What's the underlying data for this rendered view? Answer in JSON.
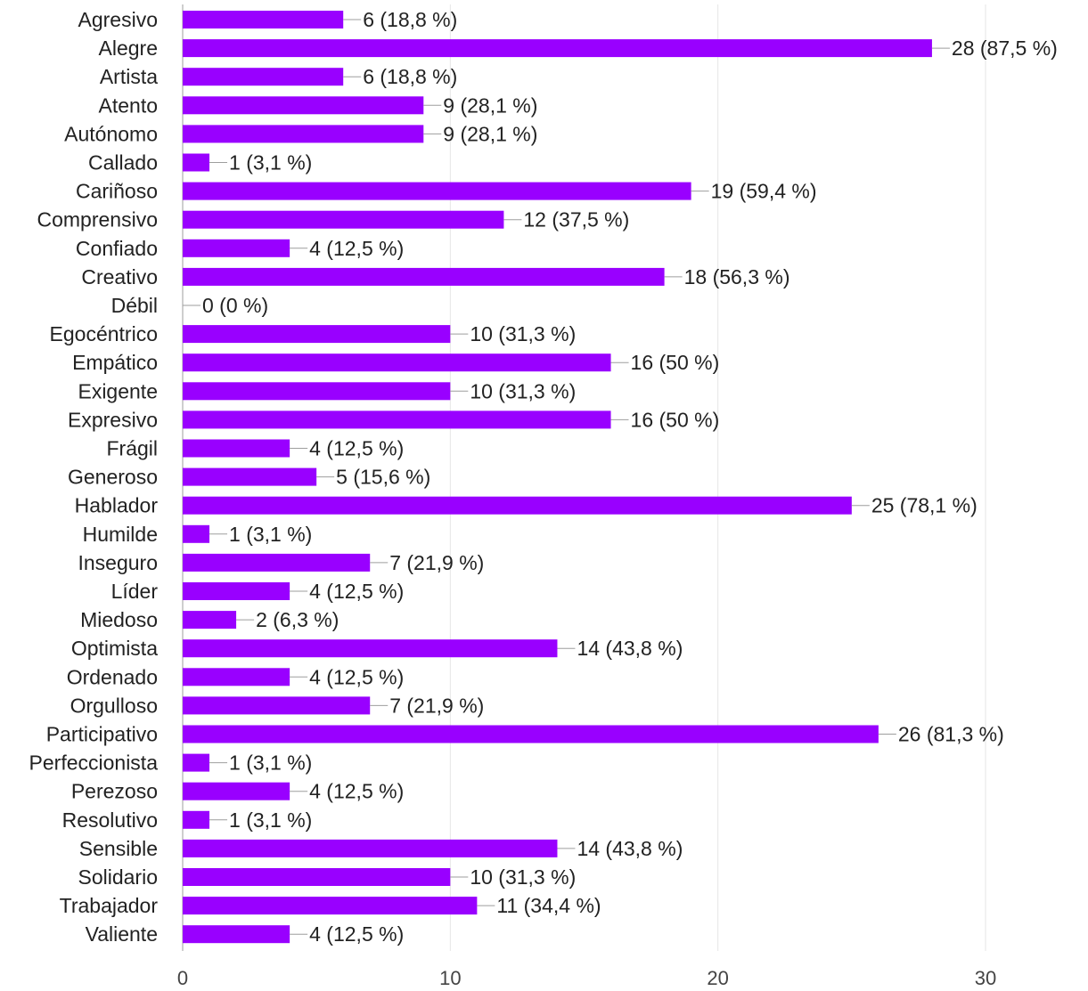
{
  "colors": {
    "bar": "#9900ff"
  },
  "chart_data": {
    "type": "bar",
    "orientation": "horizontal",
    "categories": [
      "Agresivo",
      "Alegre",
      "Artista",
      "Atento",
      "Autónomo",
      "Callado",
      "Cariñoso",
      "Comprensivo",
      "Confiado",
      "Creativo",
      "Débil",
      "Egocéntrico",
      "Empático",
      "Exigente",
      "Expresivo",
      "Frágil",
      "Generoso",
      "Hablador",
      "Humilde",
      "Inseguro",
      "Líder",
      "Miedoso",
      "Optimista",
      "Ordenado",
      "Orgulloso",
      "Participativo",
      "Perfeccionista",
      "Perezoso",
      "Resolutivo",
      "Sensible",
      "Solidario",
      "Trabajador",
      "Valiente"
    ],
    "values": [
      6,
      28,
      6,
      9,
      9,
      1,
      19,
      12,
      4,
      18,
      0,
      10,
      16,
      10,
      16,
      4,
      5,
      25,
      1,
      7,
      4,
      2,
      14,
      4,
      7,
      26,
      1,
      4,
      1,
      14,
      10,
      11,
      4
    ],
    "data_labels": [
      "6 (18,8 %)",
      "28 (87,5 %)",
      "6 (18,8 %)",
      "9 (28,1 %)",
      "9 (28,1 %)",
      "1 (3,1 %)",
      "19 (59,4 %)",
      "12 (37,5 %)",
      "4 (12,5 %)",
      "18 (56,3 %)",
      "0 (0 %)",
      "10 (31,3 %)",
      "16 (50 %)",
      "10 (31,3 %)",
      "16 (50 %)",
      "4 (12,5 %)",
      "5 (15,6 %)",
      "25 (78,1 %)",
      "1 (3,1 %)",
      "7 (21,9 %)",
      "4 (12,5 %)",
      "2 (6,3 %)",
      "14 (43,8 %)",
      "4 (12,5 %)",
      "7 (21,9 %)",
      "26 (81,3 %)",
      "1 (3,1 %)",
      "4 (12,5 %)",
      "1 (3,1 %)",
      "14 (43,8 %)",
      "10 (31,3 %)",
      "11 (34,4 %)",
      "4 (12,5 %)"
    ],
    "x_ticks": [
      "0",
      "10",
      "20",
      "30"
    ],
    "x_tick_values": [
      0,
      10,
      20,
      30
    ],
    "xlim": [
      0,
      30
    ],
    "title": "",
    "xlabel": "",
    "ylabel": "",
    "grid": true,
    "legend": "none"
  }
}
